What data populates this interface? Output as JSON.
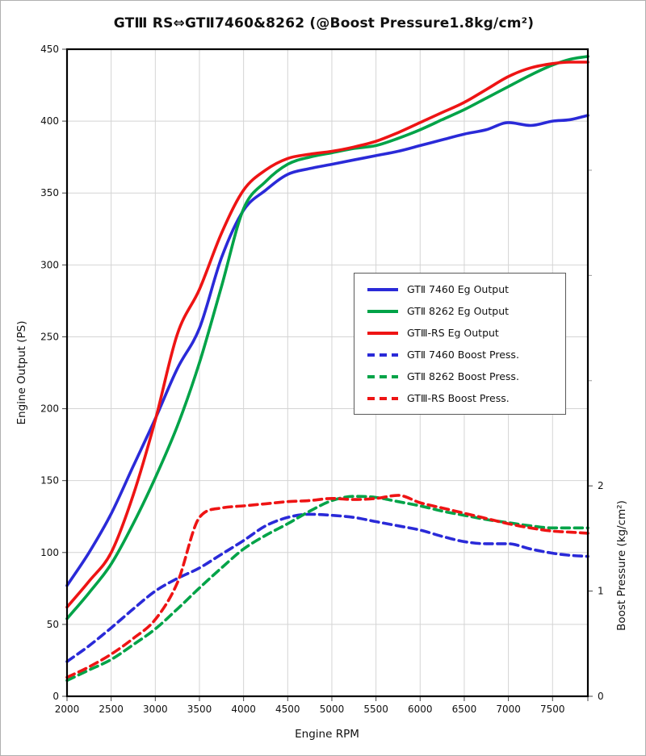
{
  "chart_data": {
    "type": "line",
    "title": "GTⅢ RS⇔GTⅡ7460&8262 (@Boost Pressure1.8kg/cm²)",
    "xlabel": "Engine RPM",
    "ylabel_left": "Engine Output (PS)",
    "ylabel_right": "Boost Pressure (kg/cm²)",
    "x_range": [
      2000,
      7900
    ],
    "x_ticks": [
      2000,
      2500,
      3000,
      3500,
      4000,
      4500,
      5000,
      5500,
      6000,
      6500,
      7000,
      7500
    ],
    "y_left_range": [
      0,
      450
    ],
    "y_left_ticks": [
      0,
      50,
      100,
      150,
      200,
      250,
      300,
      350,
      400,
      450
    ],
    "y_right_range": [
      0,
      6.15
    ],
    "y_right_ticks": [
      0,
      1,
      2
    ],
    "y_right_unlabeled_ticks": [
      3,
      4,
      5
    ],
    "grid": true,
    "legend_position": "center-right",
    "x": [
      2000,
      2250,
      2500,
      2750,
      3000,
      3250,
      3500,
      3750,
      4000,
      4250,
      4500,
      4750,
      5000,
      5250,
      5500,
      5750,
      6000,
      6250,
      6500,
      6750,
      7000,
      7250,
      7500,
      7700,
      7900
    ],
    "series": [
      {
        "name": "GTⅡ 7460 Eg Output",
        "color": "#2a2ad8",
        "style": "solid",
        "axis": "left",
        "values": [
          77,
          100,
          127,
          160,
          193,
          228,
          256,
          305,
          338,
          352,
          363,
          367,
          370,
          373,
          376,
          379,
          383,
          387,
          391,
          394,
          399,
          397,
          400,
          401,
          404
        ]
      },
      {
        "name": "GTⅡ 8262 Eg Output",
        "color": "#00a348",
        "style": "solid",
        "axis": "left",
        "values": [
          54,
          72,
          92,
          120,
          152,
          188,
          232,
          285,
          339,
          358,
          370,
          375,
          378,
          381,
          383,
          388,
          394,
          401,
          408,
          416,
          424,
          432,
          439,
          443,
          445
        ]
      },
      {
        "name": "GTⅢ-RS Eg Output",
        "color": "#ee1414",
        "style": "solid",
        "axis": "left",
        "values": [
          62,
          80,
          100,
          140,
          192,
          252,
          283,
          322,
          352,
          366,
          374,
          377,
          379,
          382,
          386,
          392,
          399,
          406,
          413,
          422,
          431,
          437,
          440,
          441,
          441
        ]
      },
      {
        "name": "GTⅡ 7460 Boost Press.",
        "color": "#2a2ad8",
        "style": "dashed",
        "axis": "right",
        "values": [
          0.33,
          0.48,
          0.65,
          0.83,
          1.0,
          1.12,
          1.22,
          1.35,
          1.48,
          1.62,
          1.7,
          1.73,
          1.72,
          1.7,
          1.66,
          1.62,
          1.58,
          1.52,
          1.47,
          1.45,
          1.45,
          1.4,
          1.36,
          1.34,
          1.33
        ]
      },
      {
        "name": "GTⅡ 8262 Boost Press.",
        "color": "#00a348",
        "style": "dashed",
        "axis": "right",
        "values": [
          0.15,
          0.25,
          0.35,
          0.49,
          0.64,
          0.83,
          1.03,
          1.22,
          1.4,
          1.53,
          1.64,
          1.76,
          1.86,
          1.9,
          1.89,
          1.85,
          1.81,
          1.76,
          1.72,
          1.68,
          1.65,
          1.62,
          1.6,
          1.6,
          1.6
        ]
      },
      {
        "name": "GTⅢ-RS Boost Press.",
        "color": "#ee1414",
        "style": "dashed",
        "axis": "right",
        "values": [
          0.18,
          0.28,
          0.4,
          0.55,
          0.73,
          1.08,
          1.7,
          1.79,
          1.81,
          1.83,
          1.85,
          1.86,
          1.88,
          1.87,
          1.88,
          1.91,
          1.84,
          1.79,
          1.74,
          1.69,
          1.64,
          1.6,
          1.57,
          1.56,
          1.55
        ]
      }
    ]
  }
}
